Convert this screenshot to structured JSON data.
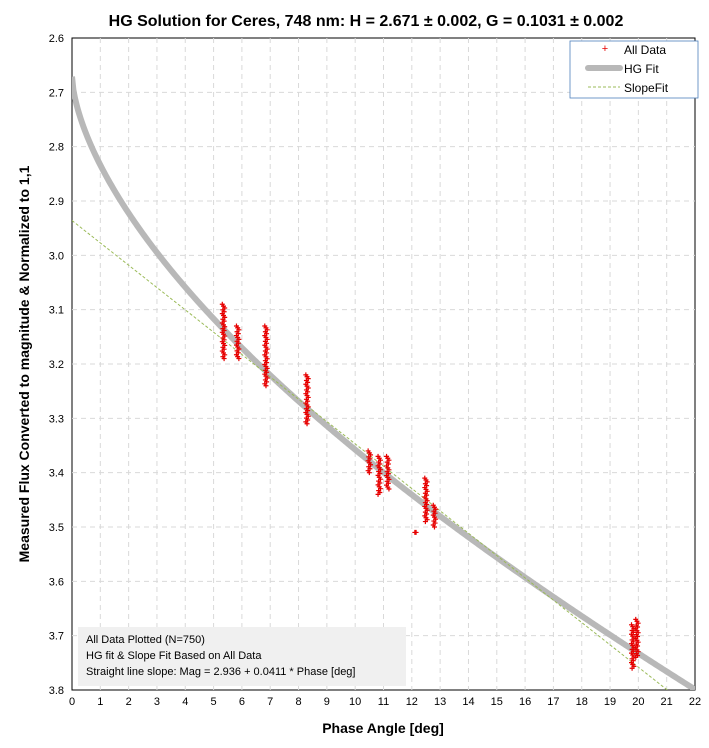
{
  "chart_data": {
    "type": "scatter",
    "title": "HG Solution for Ceres, 748 nm:  H = 2.671 ± 0.002, G = 0.1031 ± 0.002",
    "xlabel": "Phase Angle [deg]",
    "ylabel": "Measured Flux Converted to magnitude & Normalized to 1,1",
    "xlim": [
      0,
      22
    ],
    "ylim": [
      2.6,
      3.8
    ],
    "y_inverted": true,
    "x_ticks": [
      "0",
      "1",
      "2",
      "3",
      "4",
      "5",
      "6",
      "7",
      "8",
      "9",
      "10",
      "11",
      "12",
      "13",
      "14",
      "15",
      "16",
      "17",
      "18",
      "19",
      "20",
      "21",
      "22"
    ],
    "y_ticks": [
      "2.6",
      "2.7",
      "2.8",
      "2.9",
      "3.0",
      "3.1",
      "3.2",
      "3.3",
      "3.4",
      "3.5",
      "3.6",
      "3.7",
      "3.8"
    ],
    "grid": true,
    "legend_position": "top-right",
    "legend": [
      "All Data",
      "HG Fit",
      "SlopeFit"
    ],
    "hg_fit": {
      "H": 2.671,
      "G": 0.1031
    },
    "slope_fit": {
      "intercept": 2.936,
      "slope": 0.0411
    },
    "clusters": [
      {
        "x": 5.35,
        "y_min": 3.09,
        "y_max": 3.19
      },
      {
        "x": 5.85,
        "y_min": 3.13,
        "y_max": 3.19
      },
      {
        "x": 6.85,
        "y_min": 3.13,
        "y_max": 3.24
      },
      {
        "x": 8.3,
        "y_min": 3.22,
        "y_max": 3.31
      },
      {
        "x": 10.5,
        "y_min": 3.36,
        "y_max": 3.4
      },
      {
        "x": 10.85,
        "y_min": 3.37,
        "y_max": 3.44
      },
      {
        "x": 11.15,
        "y_min": 3.37,
        "y_max": 3.43
      },
      {
        "x": 12.15,
        "y_min": 3.51,
        "y_max": 3.51
      },
      {
        "x": 12.5,
        "y_min": 3.41,
        "y_max": 3.49
      },
      {
        "x": 12.8,
        "y_min": 3.46,
        "y_max": 3.5
      },
      {
        "x": 19.8,
        "y_min": 3.68,
        "y_max": 3.76
      },
      {
        "x": 19.95,
        "y_min": 3.67,
        "y_max": 3.74
      }
    ],
    "annotation": [
      "All Data Plotted (N=750)",
      "HG fit & Slope Fit Based on All Data",
      "Straight line slope:  Mag = 2.936 + 0.0411 * Phase [deg]"
    ],
    "colors": {
      "data": "#e60000",
      "hg_fit": "#b8b8b8",
      "slope_fit": "#9bbb59",
      "grid": "#d9d9d9",
      "annotation_bg": "#f0f0f0",
      "legend_border": "#4f81bd"
    }
  }
}
